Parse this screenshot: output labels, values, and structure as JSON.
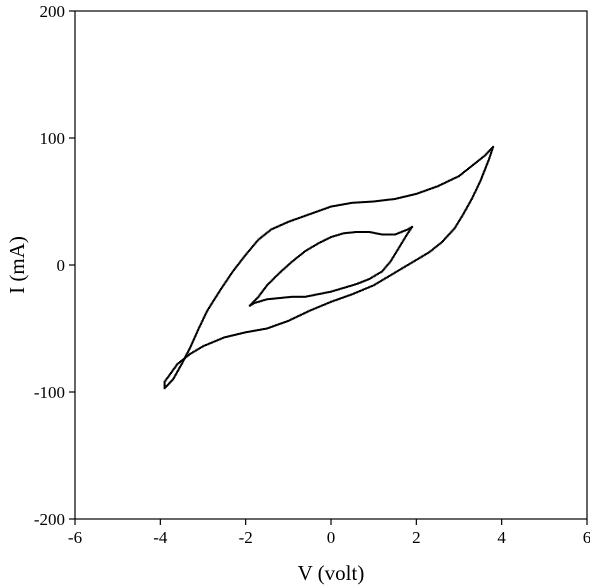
{
  "chart_data": {
    "type": "scatter",
    "xlabel": "V (volt)",
    "ylabel": "I (mA)",
    "xlim": [
      -6,
      6
    ],
    "ylim": [
      -200,
      200
    ],
    "x_ticks": [
      -6,
      -4,
      -2,
      0,
      2,
      4,
      6
    ],
    "y_ticks": [
      -200,
      -100,
      0,
      100,
      200
    ],
    "x_tick_labels": [
      "-6",
      "-4",
      "-2",
      "0",
      "2",
      "4",
      "6"
    ],
    "y_tick_labels": [
      "-200",
      "-100",
      "0",
      "100",
      "200"
    ],
    "grid": false,
    "legend": "none",
    "marker_color": "#000000",
    "series": [
      {
        "x": [
          -3.9,
          -3.7,
          -3.5,
          -3.3,
          -3.1,
          -2.9,
          -2.6,
          -2.3,
          -2.0,
          -1.7,
          -1.4,
          -1.0,
          -0.5,
          0.0,
          0.5,
          1.0,
          1.5,
          2.0,
          2.5,
          3.0,
          3.3,
          3.6,
          3.8,
          3.7,
          3.5,
          3.3,
          3.1,
          2.9,
          2.6,
          2.3,
          2.0,
          1.7,
          1.4,
          1.0,
          0.5,
          0.0,
          -0.5,
          -1.0,
          -1.5,
          -2.0,
          -2.5,
          -3.0,
          -3.3,
          -3.6,
          -3.9
        ],
        "y": [
          -97,
          -90,
          -78,
          -65,
          -50,
          -36,
          -20,
          -5,
          8,
          20,
          28,
          34,
          40,
          46,
          49,
          50,
          52,
          56,
          62,
          70,
          78,
          86,
          93,
          83,
          66,
          52,
          40,
          29,
          18,
          10,
          4,
          -2,
          -8,
          -16,
          -23,
          -29,
          -36,
          -44,
          -50,
          -53,
          -57,
          -64,
          -70,
          -78,
          -92
        ]
      },
      {
        "x": [
          -1.9,
          -1.7,
          -1.5,
          -1.2,
          -0.9,
          -0.6,
          -0.3,
          0.0,
          0.3,
          0.6,
          0.9,
          1.2,
          1.5,
          1.8,
          1.9,
          1.8,
          1.6,
          1.4,
          1.2,
          0.9,
          0.6,
          0.3,
          0.0,
          -0.3,
          -0.6,
          -0.9,
          -1.2,
          -1.5,
          -1.8,
          -1.9
        ],
        "y": [
          -32,
          -25,
          -16,
          -6,
          3,
          11,
          17,
          22,
          25,
          26,
          26,
          24,
          24,
          28,
          30,
          25,
          14,
          3,
          -5,
          -11,
          -15,
          -18,
          -21,
          -23,
          -25,
          -25,
          -26,
          -27,
          -30,
          -32
        ]
      }
    ]
  }
}
